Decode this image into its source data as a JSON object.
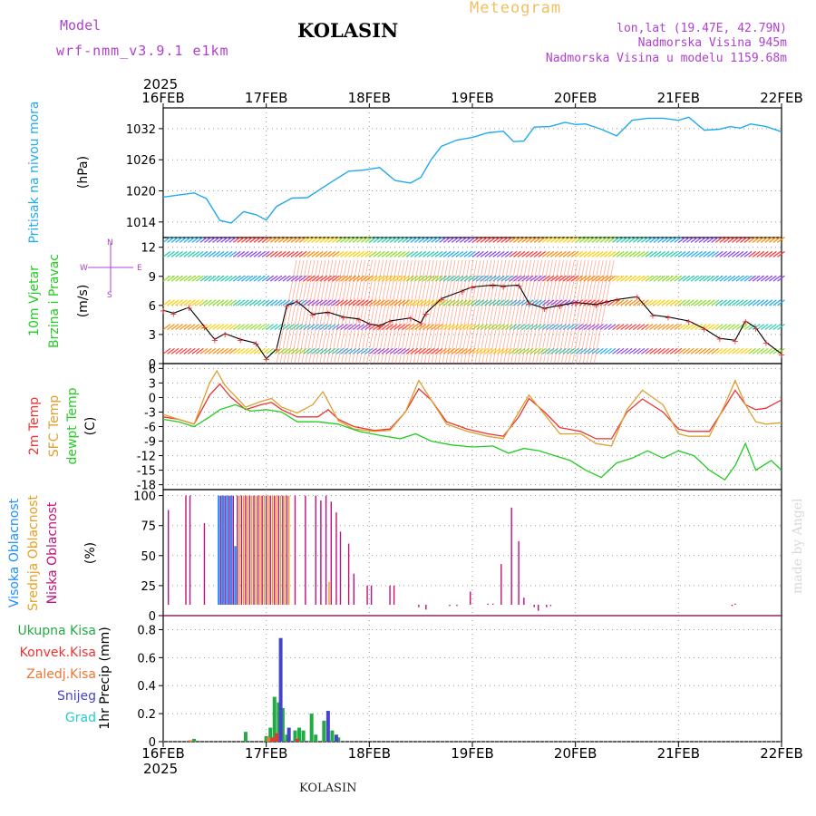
{
  "header": {
    "model_label": "Model",
    "model_name": "wrf-nmm_v3.9.1 e1km",
    "station": "KOLASIN",
    "meteogram_label": "Meteogram",
    "coords": "lon,lat (19.47E, 42.79N)",
    "elevation": "Nadmorska Visina 945m",
    "model_elevation": "Nadmorska Visina u modelu 1159.68m"
  },
  "footer": {
    "station": "KOLASIN",
    "credit": "made by Angel"
  },
  "time_axis": {
    "top_year": "2025",
    "bottom_year": "2025",
    "ticks": [
      "16FEB",
      "17FEB",
      "18FEB",
      "19FEB",
      "20FEB",
      "21FEB",
      "22FEB"
    ]
  },
  "colors": {
    "pressure": "#22aaee",
    "temp2m": "#ee3333",
    "sfc": "#dda030",
    "dewpt": "#22cc22",
    "high_cloud": "#1e90ff",
    "mid_cloud": "#e8a020",
    "low_cloud": "#c0107a",
    "total_precip": "#22aa44",
    "snow": "#4444cc",
    "wind_ylabel": "#b040d0"
  },
  "chart_data": [
    {
      "type": "line",
      "panel": "pressure",
      "ylabel_main": "Pritisak na nivou mora",
      "ylabel_unit": "(hPa)",
      "ylim": [
        1011,
        1036
      ],
      "yticks": [
        1014,
        1020,
        1026,
        1032
      ],
      "grid": true,
      "series": [
        {
          "values_x": [
            0,
            0.15,
            0.3,
            0.42,
            0.55,
            0.66,
            0.78,
            0.9,
            1.0,
            1.1,
            1.25,
            1.4,
            1.6,
            1.8,
            1.95,
            2.1,
            2.25,
            2.4,
            2.5,
            2.6,
            2.7,
            2.85,
            3.0,
            3.15,
            3.3,
            3.4,
            3.5,
            3.6,
            3.75,
            3.9,
            4.0,
            4.1,
            4.25,
            4.4,
            4.55,
            4.7,
            4.85,
            5.0,
            5.1,
            5.25,
            5.4,
            5.5,
            5.6,
            5.7,
            5.85,
            6.0
          ],
          "values_y": [
            1018.8,
            1019.2,
            1019.6,
            1018.5,
            1014.3,
            1013.8,
            1016.0,
            1015.4,
            1014.4,
            1017.0,
            1018.6,
            1018.7,
            1021.3,
            1023.8,
            1024.0,
            1024.5,
            1022.0,
            1021.5,
            1022.6,
            1026.0,
            1028.6,
            1029.8,
            1030.3,
            1031.2,
            1031.5,
            1029.5,
            1029.6,
            1032.3,
            1032.4,
            1033.2,
            1032.8,
            1032.9,
            1031.9,
            1030.6,
            1033.6,
            1034.0,
            1034.0,
            1033.6,
            1034.2,
            1031.7,
            1031.9,
            1032.4,
            1032.1,
            1032.9,
            1032.4,
            1031.4
          ]
        }
      ]
    },
    {
      "type": "line",
      "panel": "wind",
      "ylabel_main": "10m Vjetar",
      "ylabel_sub": "Brzina i Pravac",
      "ylabel_unit": "(m/s)",
      "compass": {
        "n": "N",
        "s": "S",
        "e": "E",
        "w": "W"
      },
      "ylim": [
        0,
        13
      ],
      "yticks": [
        0,
        3,
        6,
        9,
        12
      ],
      "grid": true,
      "series": [
        {
          "name": "speed",
          "values_x": [
            0.0,
            0.1,
            0.25,
            0.4,
            0.5,
            0.6,
            0.75,
            0.9,
            1.0,
            1.1,
            1.2,
            1.3,
            1.45,
            1.6,
            1.75,
            1.9,
            2.0,
            2.1,
            2.2,
            2.4,
            2.5,
            2.55,
            2.7,
            2.9,
            3.0,
            3.2,
            3.3,
            3.45,
            3.55,
            3.7,
            3.85,
            4.0,
            4.2,
            4.4,
            4.6,
            4.75,
            4.9,
            5.1,
            5.25,
            5.4,
            5.55,
            5.65,
            5.75,
            5.85,
            6.0
          ],
          "values_y": [
            5.5,
            5.2,
            5.8,
            3.8,
            2.5,
            3.1,
            2.5,
            2.1,
            0.5,
            1.5,
            6.0,
            6.4,
            5.1,
            5.3,
            4.8,
            4.6,
            4.1,
            3.9,
            4.4,
            4.7,
            4.2,
            5.2,
            6.7,
            7.5,
            7.9,
            8.1,
            8.0,
            8.1,
            6.2,
            5.7,
            6.0,
            6.3,
            6.1,
            6.6,
            6.9,
            5.0,
            4.8,
            4.4,
            3.6,
            2.6,
            2.4,
            4.4,
            3.7,
            2.2,
            1.0
          ]
        }
      ]
    },
    {
      "type": "line",
      "panel": "temperature",
      "ylabel_main": "2m Temp",
      "ylabel_sub": "SFC Temp",
      "ylabel_third": "dewpt Temp",
      "ylabel_unit": "(C)",
      "ylim": [
        -19,
        7
      ],
      "yticks": [
        -18,
        -15,
        -12,
        -9,
        -6,
        -3,
        0,
        3,
        6
      ],
      "grid": true,
      "series": [
        {
          "name": "2m Temp",
          "values_x": [
            0,
            0.15,
            0.3,
            0.45,
            0.55,
            0.65,
            0.8,
            0.95,
            1.05,
            1.15,
            1.3,
            1.5,
            1.6,
            1.7,
            1.85,
            2.05,
            2.2,
            2.35,
            2.48,
            2.6,
            2.75,
            2.95,
            3.15,
            3.3,
            3.45,
            3.55,
            3.7,
            3.85,
            4.05,
            4.2,
            4.35,
            4.5,
            4.65,
            4.85,
            5.0,
            5.1,
            5.3,
            5.45,
            5.55,
            5.65,
            5.75,
            5.85,
            6.0
          ],
          "values_y": [
            -4,
            -4.5,
            -5.5,
            0.5,
            2.8,
            0.2,
            -2.5,
            -1.5,
            -1.0,
            -2.5,
            -4,
            -4,
            -2.5,
            -4.5,
            -6,
            -6.8,
            -6.5,
            -3,
            1.8,
            -0.5,
            -5,
            -6.5,
            -7.5,
            -8,
            -4,
            -0.2,
            -3,
            -6.2,
            -7,
            -8.5,
            -8.5,
            -3,
            -0.3,
            -3,
            -6.5,
            -7,
            -7,
            -2,
            1.5,
            -1.5,
            -2.5,
            -2.2,
            -0.5
          ]
        },
        {
          "name": "SFC Temp",
          "values_x": [
            0,
            0.15,
            0.3,
            0.45,
            0.52,
            0.6,
            0.8,
            0.95,
            1.05,
            1.15,
            1.3,
            1.45,
            1.55,
            1.7,
            1.85,
            2.05,
            2.2,
            2.35,
            2.48,
            2.6,
            2.75,
            2.95,
            3.15,
            3.3,
            3.45,
            3.55,
            3.7,
            3.85,
            4.05,
            4.2,
            4.35,
            4.5,
            4.65,
            4.85,
            5.0,
            5.1,
            5.3,
            5.45,
            5.55,
            5.65,
            5.75,
            5.85,
            6.0
          ],
          "values_y": [
            -3.5,
            -4.5,
            -5.5,
            3,
            5.5,
            2.5,
            -2,
            -0.8,
            -0.2,
            -2,
            -3.2,
            -1.5,
            1.2,
            -4.8,
            -6.5,
            -7,
            -6.8,
            -3,
            3.5,
            -0.5,
            -5.5,
            -7,
            -8,
            -8.5,
            -3,
            0.5,
            -3.5,
            -7.5,
            -7.5,
            -9.5,
            -10,
            -2.5,
            1.5,
            -1.5,
            -7.5,
            -8,
            -8,
            -1.5,
            3.5,
            -1.5,
            -5,
            -5.5,
            -5.2
          ]
        },
        {
          "name": "dewpt Temp",
          "values_x": [
            0,
            0.15,
            0.3,
            0.45,
            0.55,
            0.7,
            0.85,
            1.0,
            1.15,
            1.3,
            1.5,
            1.7,
            1.9,
            2.1,
            2.3,
            2.45,
            2.6,
            2.8,
            3.0,
            3.2,
            3.35,
            3.5,
            3.65,
            3.8,
            3.95,
            4.1,
            4.25,
            4.4,
            4.55,
            4.7,
            4.85,
            5.0,
            5.15,
            5.3,
            5.45,
            5.55,
            5.65,
            5.75,
            5.9,
            6.0
          ],
          "values_y": [
            -4.5,
            -5,
            -6,
            -4,
            -2.5,
            -1.5,
            -2.8,
            -2.5,
            -3,
            -5,
            -5,
            -5.5,
            -7,
            -7.8,
            -8.5,
            -7.5,
            -9,
            -9.8,
            -10.2,
            -10,
            -11.5,
            -10.5,
            -11,
            -12,
            -13,
            -15,
            -16.5,
            -13.5,
            -12.5,
            -11,
            -12.5,
            -11,
            -12,
            -15,
            -17,
            -14,
            -9.5,
            -15,
            -13,
            -15
          ]
        }
      ]
    },
    {
      "type": "bar",
      "panel": "cloud",
      "ylabel_main": "Visoka Oblacnost",
      "ylabel_sub": "Srednja Oblacnost",
      "ylabel_third": "Niska Oblacnost",
      "ylabel_unit": "(%)",
      "ylim": [
        0,
        105
      ],
      "yticks": [
        0,
        25,
        50,
        75,
        100
      ],
      "grid": true,
      "series": [
        {
          "name": "Visoka Oblacnost",
          "x": [
            0.54,
            0.58,
            0.62,
            0.66,
            0.7
          ],
          "values": [
            100,
            100,
            100,
            100,
            58
          ]
        },
        {
          "name": "Srednja Oblacnost",
          "x": [
            0.74,
            0.78,
            0.82,
            0.86,
            0.9,
            0.94,
            0.98,
            1.02,
            1.06,
            1.1,
            1.14,
            1.18,
            1.22,
            1.61
          ],
          "values": [
            100,
            100,
            100,
            100,
            100,
            100,
            100,
            100,
            100,
            100,
            100,
            100,
            100,
            28
          ]
        },
        {
          "name": "Niska Oblacnost",
          "x": [
            0.05,
            0.22,
            0.26,
            0.4,
            0.56,
            0.6,
            0.64,
            0.68,
            0.72,
            0.76,
            0.8,
            0.84,
            0.88,
            0.92,
            0.96,
            1.0,
            1.04,
            1.08,
            1.12,
            1.16,
            1.2,
            1.28,
            1.38,
            1.48,
            1.53,
            1.58,
            1.63,
            1.68,
            1.72,
            1.8,
            1.85,
            1.98,
            2.02,
            2.2,
            2.24,
            2.48,
            2.55,
            2.78,
            2.85,
            2.98,
            3.15,
            3.2,
            3.28,
            3.38,
            3.45,
            3.5,
            3.6,
            3.64,
            3.72,
            3.76,
            5.52,
            5.55
          ],
          "values": [
            88,
            100,
            100,
            77,
            100,
            100,
            100,
            100,
            100,
            100,
            100,
            100,
            100,
            100,
            100,
            100,
            100,
            100,
            100,
            100,
            100,
            100,
            100,
            100,
            96,
            100,
            95,
            86,
            70,
            60,
            35,
            25,
            25,
            25,
            25,
            7,
            5,
            8,
            8,
            20,
            10,
            10,
            43,
            90,
            62,
            15,
            7,
            4,
            7,
            8,
            8,
            10
          ]
        }
      ]
    },
    {
      "type": "bar",
      "panel": "precipitation",
      "legend": [
        "Ukupna Kisa",
        "Konvek.Kisa",
        "Zaledj.Kisa",
        "Snijeg",
        "Grad"
      ],
      "ylabel_unit": "1hr Precip (mm)",
      "ylim": [
        0,
        0.9
      ],
      "yticks": [
        0,
        0.2,
        0.4,
        0.6,
        0.8
      ],
      "grid": true,
      "series": [
        {
          "name": "Ukupna Kisa",
          "x": [
            0.3,
            0.8,
            1.0,
            1.04,
            1.08,
            1.12,
            1.16,
            1.2,
            1.28,
            1.32,
            1.36,
            1.44,
            1.48,
            1.56,
            1.64,
            1.7
          ],
          "values": [
            0.02,
            0.07,
            0.04,
            0.1,
            0.32,
            0.28,
            0.24,
            0.05,
            0.08,
            0.1,
            0.08,
            0.2,
            0.05,
            0.15,
            0.08,
            0.03
          ]
        },
        {
          "name": "Konvek.Kisa",
          "x": [
            1.06,
            1.1,
            1.3
          ],
          "values": [
            0.03,
            0.06,
            0.02
          ]
        },
        {
          "name": "Zaledj.Kisa",
          "x": [
            0.26,
            1.02
          ],
          "values": [
            0.01,
            0.03
          ]
        },
        {
          "name": "Snijeg",
          "x": [
            1.14,
            1.22,
            1.6,
            1.68
          ],
          "values": [
            0.74,
            0.1,
            0.22,
            0.05
          ]
        }
      ]
    }
  ]
}
